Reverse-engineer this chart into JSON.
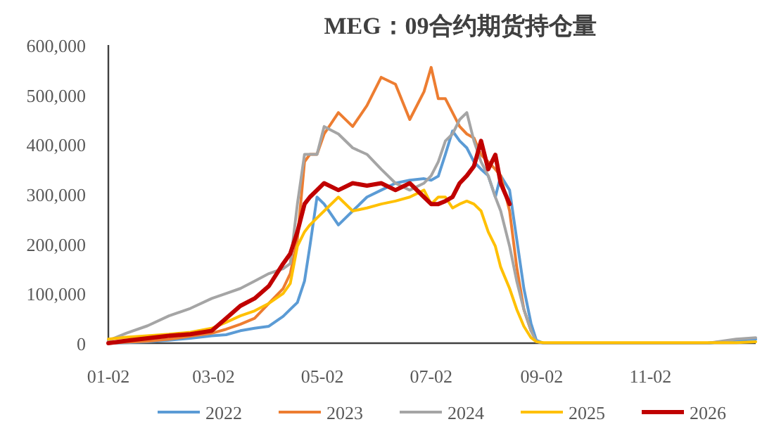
{
  "chart_data": {
    "type": "line",
    "title": "MEG：09合约期货持仓量",
    "x": [
      "--01-02",
      "--01-12",
      "--01-24",
      "--02-05",
      "--02-17",
      "--03-01",
      "--03-09",
      "--03-17",
      "--03-25",
      "--04-02",
      "--04-10",
      "--04-14",
      "--04-18",
      "--04-22",
      "--04-25",
      "--04-29",
      "--05-03",
      "--05-11",
      "--05-19",
      "--05-27",
      "--06-04",
      "--06-12",
      "--06-20",
      "--06-28",
      "--07-02",
      "--07-06",
      "--07-10",
      "--07-14",
      "--07-18",
      "--07-22",
      "--07-26",
      "--07-30",
      "--08-03",
      "--08-07",
      "--08-10",
      "--08-15",
      "--08-19",
      "--08-23",
      "--08-27",
      "--08-30",
      "--09-03",
      "--09-15",
      "--10-25",
      "--12-04",
      "--12-20",
      "--12-31"
    ],
    "xlim": [
      "--01-02",
      "--12-31"
    ],
    "xticks": [
      {
        "value": "--01-02",
        "label": "01-02"
      },
      {
        "value": "--03-02",
        "label": "03-02"
      },
      {
        "value": "--05-02",
        "label": "05-02"
      },
      {
        "value": "--07-02",
        "label": "07-02"
      },
      {
        "value": "--09-02",
        "label": "09-02"
      },
      {
        "value": "--11-02",
        "label": "11-02"
      }
    ],
    "ylim": [
      0,
      600000
    ],
    "yticks": [
      0,
      {
        "value": 100000,
        "label": "100,000"
      },
      {
        "value": 200000,
        "label": "200,000"
      },
      {
        "value": 300000,
        "label": "300,000"
      },
      {
        "value": 400000,
        "label": "400,000"
      },
      {
        "value": 500000,
        "label": "500,000"
      },
      {
        "value": 600000,
        "label": "600,000"
      }
    ],
    "grid": false,
    "legend": "bottom",
    "marker": "none",
    "line_style": "solid",
    "series": [
      {
        "name": "2022",
        "color": "#5b9bd5",
        "values": [
          0,
          1000,
          3000,
          6000,
          10000,
          15000,
          17000,
          25000,
          30000,
          34000,
          54000,
          68000,
          82000,
          125000,
          195000,
          294000,
          280000,
          238000,
          266000,
          294000,
          308000,
          322000,
          328000,
          331000,
          328000,
          336000,
          380000,
          427000,
          407000,
          393000,
          365000,
          350000,
          337000,
          294000,
          337000,
          308000,
          209000,
          110000,
          40000,
          6000,
          0,
          0,
          0,
          0,
          6000,
          8000
        ]
      },
      {
        "name": "2023",
        "color": "#ed7d31",
        "values": [
          0,
          2000,
          4000,
          8000,
          14000,
          20000,
          28000,
          38000,
          50000,
          80000,
          110000,
          140000,
          209000,
          365000,
          380000,
          380000,
          421000,
          464000,
          436000,
          478000,
          535000,
          521000,
          450000,
          506000,
          555000,
          492000,
          492000,
          464000,
          436000,
          421000,
          413000,
          379000,
          365000,
          350000,
          337000,
          266000,
          153000,
          68000,
          25000,
          null,
          null,
          null,
          null,
          null,
          null,
          null
        ]
      },
      {
        "name": "2024",
        "color": "#a5a5a5",
        "values": [
          5000,
          20000,
          35000,
          55000,
          70000,
          90000,
          100000,
          110000,
          125000,
          140000,
          150000,
          160000,
          280000,
          380000,
          380000,
          380000,
          436000,
          421000,
          393000,
          380000,
          350000,
          322000,
          308000,
          322000,
          337000,
          365000,
          407000,
          421000,
          450000,
          464000,
          407000,
          365000,
          337000,
          294000,
          266000,
          195000,
          125000,
          68000,
          25000,
          3000,
          0,
          0,
          0,
          0,
          8000,
          11000
        ]
      },
      {
        "name": "2025",
        "color": "#ffc000",
        "values": [
          8000,
          12000,
          15000,
          18000,
          22000,
          30000,
          42000,
          55000,
          65000,
          80000,
          100000,
          120000,
          195000,
          224000,
          238000,
          252000,
          266000,
          294000,
          266000,
          272000,
          280000,
          286000,
          294000,
          308000,
          280000,
          294000,
          294000,
          272000,
          280000,
          286000,
          280000,
          266000,
          224000,
          195000,
          153000,
          110000,
          68000,
          34000,
          11000,
          3000,
          1000,
          1000,
          1000,
          1000,
          1000,
          3000
        ]
      },
      {
        "name": "2026",
        "color": "#c00000",
        "values": [
          0,
          5000,
          10000,
          15000,
          18000,
          25000,
          50000,
          75000,
          90000,
          115000,
          160000,
          180000,
          224000,
          280000,
          294000,
          308000,
          322000,
          308000,
          322000,
          317000,
          322000,
          308000,
          322000,
          294000,
          280000,
          280000,
          286000,
          294000,
          322000,
          337000,
          356000,
          407000,
          350000,
          379000,
          322000,
          280000,
          null,
          null,
          null,
          null,
          null,
          null,
          null,
          null,
          null,
          null
        ]
      }
    ]
  }
}
